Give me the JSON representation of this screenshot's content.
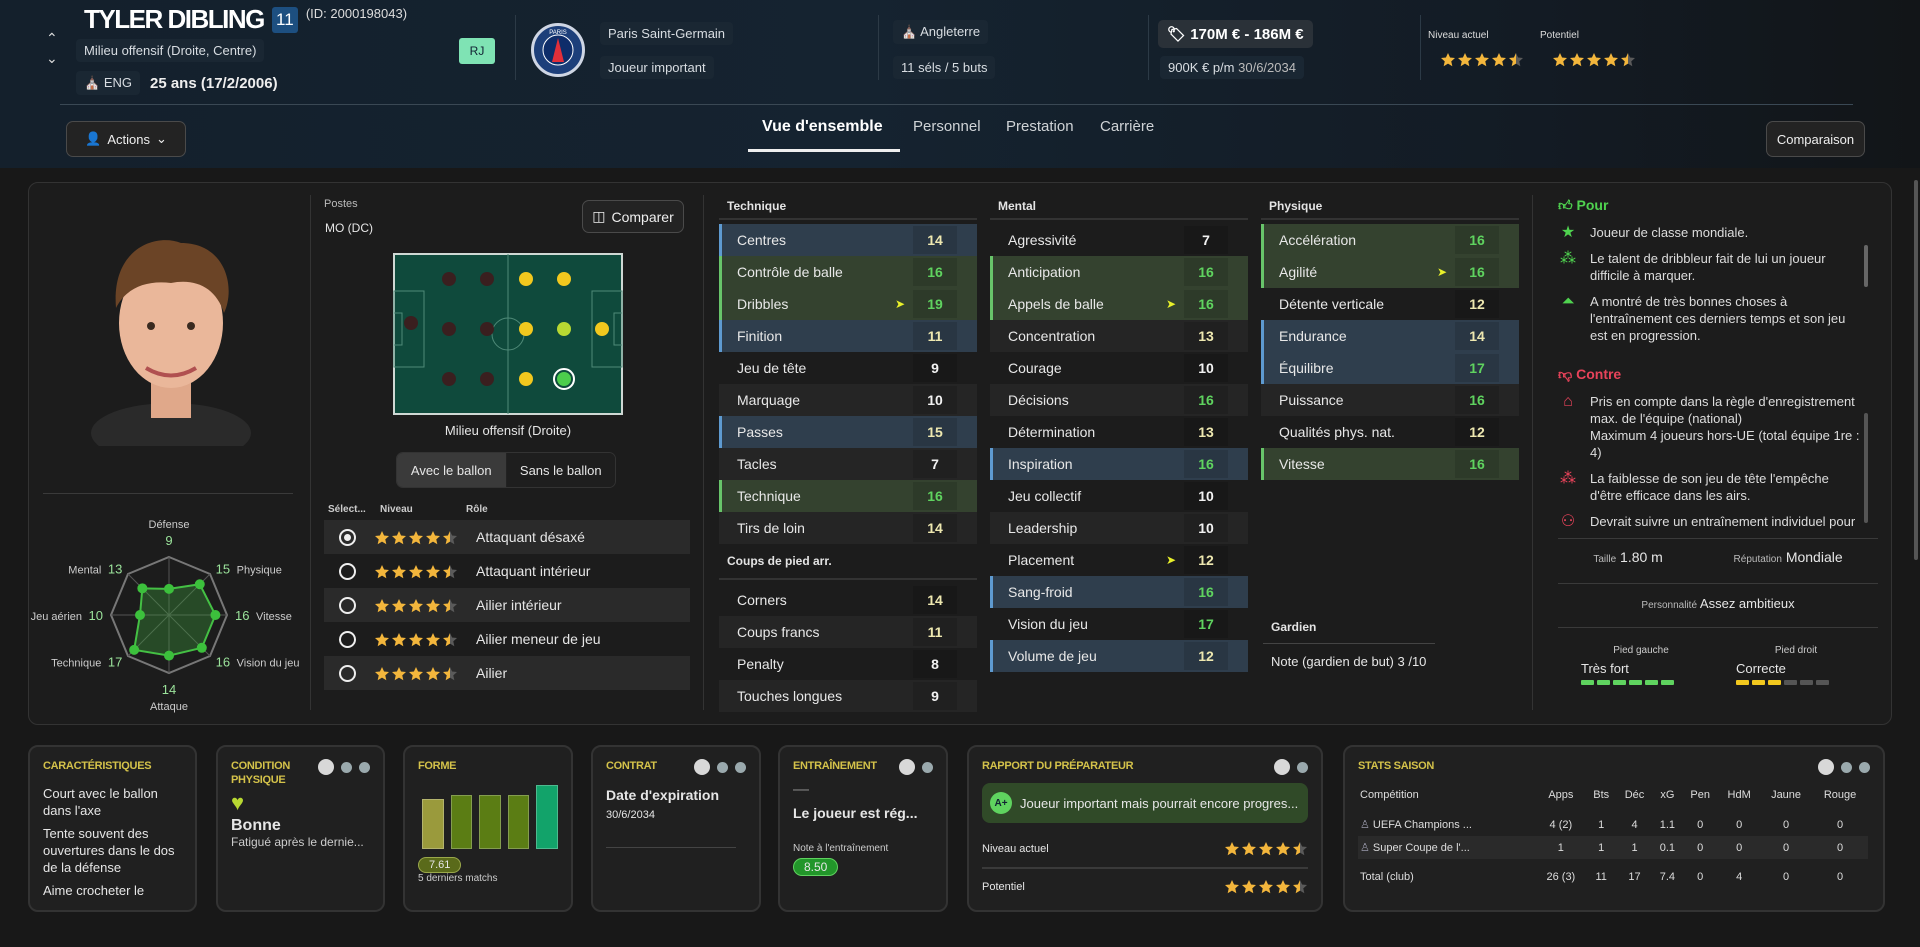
{
  "header": {
    "name": "TYLER DIBLING",
    "number": "11",
    "id": "(ID: 2000198043)",
    "position": "Milieu offensif (Droite, Centre)",
    "nation_code": "ENG",
    "age": "25 ans (17/2/2006)",
    "badge": "RJ",
    "club": "Paris Saint-Germain",
    "club_logo_text": "PARIS",
    "squad_status": "Joueur important",
    "country": "Angleterre",
    "caps": "11 séls / 5 buts",
    "value": "170M € - 186M €",
    "wage": "900K € p/m",
    "contract_end": "30/6/2034",
    "current_label": "Niveau actuel",
    "current_stars": 4.5,
    "potential_label": "Potentiel",
    "potential_stars": 4.5
  },
  "nav": {
    "actions": "Actions",
    "tabs": [
      "Vue d'ensemble",
      "Personnel",
      "Prestation",
      "Carrière"
    ],
    "active_tab": 0,
    "compare": "Comparaison"
  },
  "radar": {
    "max": 20,
    "axes": [
      {
        "label": "Défense",
        "value": 9
      },
      {
        "label": "Physique",
        "value": 15
      },
      {
        "label": "Vitesse",
        "value": 16
      },
      {
        "label": "Vision du jeu",
        "value": 16
      },
      {
        "label": "Attaque",
        "value": 14
      },
      {
        "label": "Technique",
        "value": 17
      },
      {
        "label": "Jeu aérien",
        "value": 10
      },
      {
        "label": "Mental",
        "value": 13
      }
    ]
  },
  "positions": {
    "label": "Postes",
    "value": "MO (DC)",
    "compare": "Comparer",
    "selected": "Milieu offensif (Droite)",
    "toggle": [
      "Avec le ballon",
      "Sans le ballon"
    ],
    "toggle_active": 0,
    "headers": [
      "Sélect...",
      "Niveau",
      "Rôle"
    ],
    "roles": [
      {
        "name": "Attaquant désaxé",
        "stars": 4.5,
        "selected": true
      },
      {
        "name": "Attaquant intérieur",
        "stars": 4.5
      },
      {
        "name": "Ailier intérieur",
        "stars": 4.5
      },
      {
        "name": "Ailier meneur de jeu",
        "stars": 4.5
      },
      {
        "name": "Ailier",
        "stars": 4.5
      }
    ]
  },
  "attributes": {
    "technique": {
      "title": "Technique",
      "items": [
        {
          "n": "Centres",
          "v": 14,
          "h": "blue"
        },
        {
          "n": "Contrôle de balle",
          "v": 16,
          "h": "green"
        },
        {
          "n": "Dribbles",
          "v": 19,
          "h": "green",
          "up": true
        },
        {
          "n": "Finition",
          "v": 11,
          "h": "blue"
        },
        {
          "n": "Jeu de tête",
          "v": 9
        },
        {
          "n": "Marquage",
          "v": 10
        },
        {
          "n": "Passes",
          "v": 15,
          "h": "blue"
        },
        {
          "n": "Tacles",
          "v": 7
        },
        {
          "n": "Technique",
          "v": 16,
          "h": "green"
        },
        {
          "n": "Tirs de loin",
          "v": 14
        }
      ]
    },
    "setpieces": {
      "title": "Coups de pied arr.",
      "items": [
        {
          "n": "Corners",
          "v": 14
        },
        {
          "n": "Coups francs",
          "v": 11
        },
        {
          "n": "Penalty",
          "v": 8
        },
        {
          "n": "Touches longues",
          "v": 9
        }
      ]
    },
    "mental": {
      "title": "Mental",
      "items": [
        {
          "n": "Agressivité",
          "v": 7
        },
        {
          "n": "Anticipation",
          "v": 16,
          "h": "green"
        },
        {
          "n": "Appels de balle",
          "v": 16,
          "h": "green",
          "up": true
        },
        {
          "n": "Concentration",
          "v": 13
        },
        {
          "n": "Courage",
          "v": 10
        },
        {
          "n": "Décisions",
          "v": 16
        },
        {
          "n": "Détermination",
          "v": 13
        },
        {
          "n": "Inspiration",
          "v": 16,
          "h": "blue"
        },
        {
          "n": "Jeu collectif",
          "v": 10
        },
        {
          "n": "Leadership",
          "v": 10
        },
        {
          "n": "Placement",
          "v": 12,
          "up": true
        },
        {
          "n": "Sang-froid",
          "v": 16,
          "h": "blue"
        },
        {
          "n": "Vision du jeu",
          "v": 17
        },
        {
          "n": "Volume de jeu",
          "v": 12,
          "h": "blue"
        }
      ]
    },
    "physique": {
      "title": "Physique",
      "items": [
        {
          "n": "Accélération",
          "v": 16,
          "h": "green"
        },
        {
          "n": "Agilité",
          "v": 16,
          "h": "green",
          "up": true
        },
        {
          "n": "Détente verticale",
          "v": 12
        },
        {
          "n": "Endurance",
          "v": 14,
          "h": "blue"
        },
        {
          "n": "Équilibre",
          "v": 17,
          "h": "blue"
        },
        {
          "n": "Puissance",
          "v": 16
        },
        {
          "n": "Qualités phys. nat.",
          "v": 12
        },
        {
          "n": "Vitesse",
          "v": 16,
          "h": "green"
        }
      ]
    },
    "goalkeeper": {
      "title": "Gardien",
      "label": "Note (gardien de but)",
      "value": "3 /10"
    }
  },
  "pros_cons": {
    "pros_title": "Pour",
    "cons_title": "Contre",
    "pros": [
      {
        "icon": "star-icon",
        "text": "Joueur de classe mondiale."
      },
      {
        "icon": "dribble-icon",
        "text": "Le talent de dribbleur fait de lui un joueur difficile à marquer."
      },
      {
        "icon": "training-progress-icon",
        "text": "A montré de très bonnes choses à l'entraînement ces derniers temps et son jeu est en progression."
      }
    ],
    "cons": [
      {
        "icon": "home-check-icon",
        "text": "Pris en compte dans la règle d'enregistrement max. de l'équipe (national)\nMaximum 4 joueurs hors-UE (total équipe 1re : 4)"
      },
      {
        "icon": "heading-icon",
        "text": "La faiblesse de son jeu de tête l'empêche d'être efficace dans les airs."
      },
      {
        "icon": "individual-training-icon",
        "text": "Devrait suivre un entraînement individuel pour"
      }
    ],
    "height_label": "Taille",
    "height": "1.80 m",
    "reputation_label": "Réputation",
    "reputation": "Mondiale",
    "personality_label": "Personnalité",
    "personality": "Assez ambitieux",
    "left_foot_label": "Pied gauche",
    "left_foot": "Très fort",
    "left_foot_level": 6,
    "right_foot_label": "Pied droit",
    "right_foot": "Correcte",
    "right_foot_level": 3,
    "foot_max": 6
  },
  "cards": {
    "traits": {
      "title": "CARACTÉRISTIQUES",
      "items": [
        "Court avec le ballon dans l'axe",
        "Tente souvent des ouvertures dans le dos de la défense",
        "Aime crocheter le"
      ]
    },
    "condition": {
      "title": "CONDITION PHYSIQUE",
      "status": "Bonne",
      "detail": "Fatigué après le dernie..."
    },
    "form": {
      "title": "FORME",
      "bar_levels": [
        0.78,
        0.84,
        0.84,
        0.84,
        1.0
      ],
      "bar_colors": [
        "#9a9a3c",
        "#5b7d14",
        "#5b7d14",
        "#5b7d14",
        "#12a36a"
      ],
      "average": "7.61",
      "caption": "5 derniers matchs"
    },
    "contract": {
      "title": "CONTRAT",
      "label": "Date d'expiration",
      "date": "30/6/2034"
    },
    "training": {
      "title": "ENTRAÎNEMENT",
      "dash": "—",
      "status": "Le joueur est rég...",
      "rating_label": "Note à l'entraînement",
      "rating": "8.50"
    },
    "report": {
      "title": "RAPPORT DU PRÉPARATEUR",
      "grade": "A+",
      "summary": "Joueur important mais pourrait encore progres...",
      "current_label": "Niveau actuel",
      "current_stars": 4.5,
      "potential_label": "Potentiel",
      "potential_stars": 4.5
    },
    "stats": {
      "title": "STATS SAISON",
      "columns": [
        "Compétition",
        "Apps",
        "Bts",
        "Déc",
        "xG",
        "Pen",
        "HdM",
        "Jaune",
        "Rouge"
      ],
      "rows": [
        [
          "UEFA Champions ...",
          "4 (2)",
          "1",
          "4",
          "1.1",
          "0",
          "0",
          "0",
          "0"
        ],
        [
          "Super Coupe de l'...",
          "1",
          "1",
          "1",
          "0.1",
          "0",
          "0",
          "0",
          "0"
        ]
      ],
      "total": [
        "Total (club)",
        "26 (3)",
        "11",
        "17",
        "7.4",
        "0",
        "4",
        "0",
        "0"
      ]
    }
  },
  "colors": {
    "high": "#5fd35f",
    "mid": "#eee8b0",
    "star": "#f3b63c",
    "card_title": "#d4c24a",
    "pros": "#4fd24f",
    "cons": "#e8435a"
  }
}
